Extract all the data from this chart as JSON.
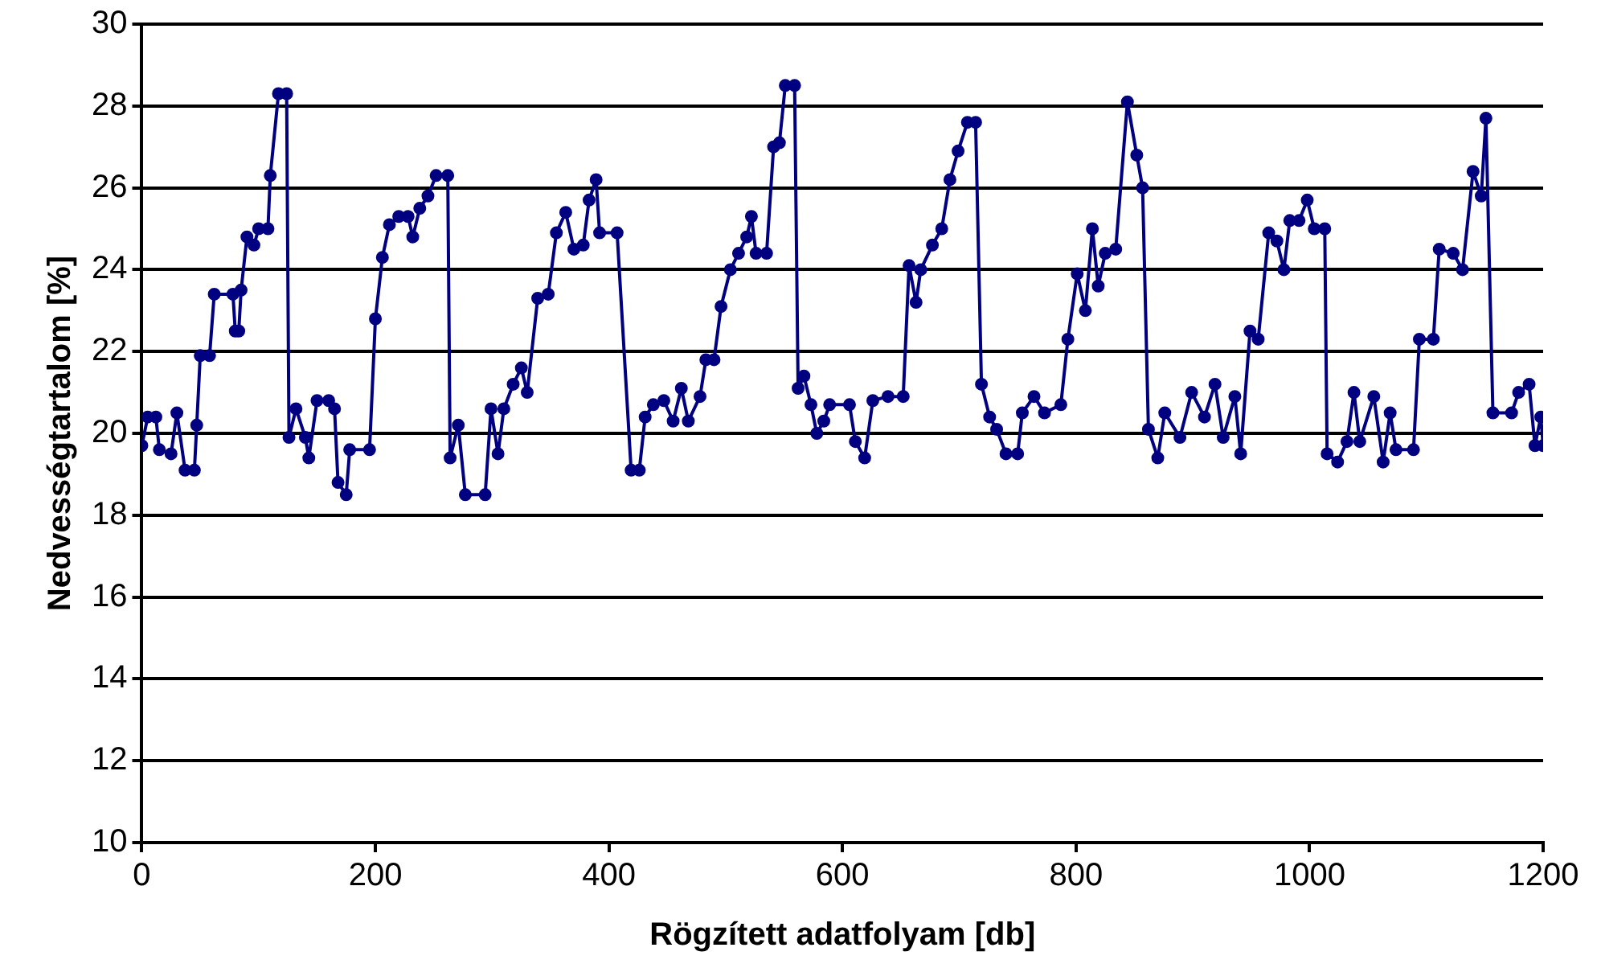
{
  "chart_data": {
    "type": "line",
    "xlabel": "Rögzített adatfolyam [db]",
    "ylabel": "Nedvességtartalom [%]",
    "xlim": [
      0,
      1200
    ],
    "xticks": [
      0,
      200,
      400,
      600,
      800,
      1000,
      1200
    ],
    "ylim": [
      10,
      30
    ],
    "yticks": [
      10,
      12,
      14,
      16,
      18,
      20,
      22,
      24,
      26,
      28,
      30
    ],
    "grid": "y",
    "legend": false,
    "marker": "circle",
    "line_style": "solid",
    "series": [
      {
        "color": "#000080",
        "x": [
          0,
          5,
          12,
          15,
          25,
          30,
          37,
          45,
          47,
          50,
          58,
          62,
          78,
          80,
          83,
          85,
          90,
          96,
          100,
          108,
          110,
          117,
          124,
          126,
          132,
          140,
          143,
          150,
          160,
          165,
          168,
          175,
          178,
          195,
          200,
          206,
          212,
          220,
          228,
          232,
          238,
          245,
          252,
          262,
          264,
          271,
          277,
          294,
          299,
          305,
          310,
          318,
          325,
          330,
          339,
          348,
          355,
          363,
          370,
          378,
          383,
          389,
          392,
          407,
          419,
          426,
          431,
          438,
          447,
          455,
          462,
          468,
          478,
          483,
          490,
          496,
          504,
          511,
          518,
          522,
          526,
          535,
          541,
          546,
          551,
          559,
          562,
          567,
          573,
          578,
          584,
          589,
          606,
          611,
          619,
          626,
          639,
          652,
          657,
          663,
          667,
          677,
          685,
          692,
          699,
          707,
          714,
          719,
          726,
          732,
          740,
          750,
          754,
          764,
          773,
          787,
          793,
          801,
          808,
          814,
          819,
          825,
          834,
          844,
          852,
          857,
          862,
          870,
          876,
          889,
          899,
          910,
          919,
          926,
          936,
          941,
          949,
          956,
          965,
          972,
          978,
          983,
          991,
          998,
          1004,
          1013,
          1015,
          1024,
          1032,
          1038,
          1043,
          1055,
          1063,
          1069,
          1074,
          1089,
          1094,
          1106,
          1111,
          1123,
          1131,
          1140,
          1147,
          1151,
          1157,
          1173,
          1179,
          1188,
          1193,
          1198,
          1200
        ],
        "values": [
          19.7,
          20.4,
          20.4,
          19.6,
          19.5,
          20.5,
          19.1,
          19.1,
          20.2,
          21.9,
          21.9,
          23.4,
          23.4,
          22.5,
          22.5,
          23.5,
          24.8,
          24.6,
          25.0,
          25.0,
          26.3,
          28.3,
          28.3,
          19.9,
          20.6,
          19.9,
          19.4,
          20.8,
          20.8,
          20.6,
          18.8,
          18.5,
          19.6,
          19.6,
          22.8,
          24.3,
          25.1,
          25.3,
          25.3,
          24.8,
          25.5,
          25.8,
          26.3,
          26.3,
          19.4,
          20.2,
          18.5,
          18.5,
          20.6,
          19.5,
          20.6,
          21.2,
          21.6,
          21.0,
          23.3,
          23.4,
          24.9,
          25.4,
          24.5,
          24.6,
          25.7,
          26.2,
          24.9,
          24.9,
          19.1,
          19.1,
          20.4,
          20.7,
          20.8,
          20.3,
          21.1,
          20.3,
          20.9,
          21.8,
          21.8,
          23.1,
          24.0,
          24.4,
          24.8,
          25.3,
          24.4,
          24.4,
          27.0,
          27.1,
          28.5,
          28.5,
          21.1,
          21.4,
          20.7,
          20.0,
          20.3,
          20.7,
          20.7,
          19.8,
          19.4,
          20.8,
          20.9,
          20.9,
          24.1,
          23.2,
          24.0,
          24.6,
          25.0,
          26.2,
          26.9,
          27.6,
          27.6,
          21.2,
          20.4,
          20.1,
          19.5,
          19.5,
          20.5,
          20.9,
          20.5,
          20.7,
          22.3,
          23.9,
          23.0,
          25.0,
          23.6,
          24.4,
          24.5,
          28.1,
          26.8,
          26.0,
          20.1,
          19.4,
          20.5,
          19.9,
          21.0,
          20.4,
          21.2,
          19.9,
          20.9,
          19.5,
          22.5,
          22.3,
          24.9,
          24.7,
          24.0,
          25.2,
          25.2,
          25.7,
          25.0,
          25.0,
          19.5,
          19.3,
          19.8,
          21.0,
          19.8,
          20.9,
          19.3,
          20.5,
          19.6,
          19.6,
          22.3,
          22.3,
          24.5,
          24.4,
          24.0,
          26.4,
          25.8,
          27.7,
          20.5,
          20.5,
          21.0,
          21.2,
          19.7,
          20.4,
          19.7
        ]
      }
    ]
  }
}
